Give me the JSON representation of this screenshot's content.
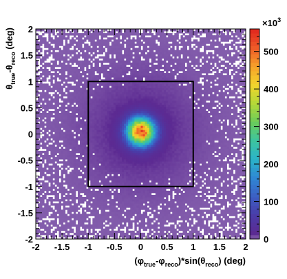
{
  "chart_data": {
    "type": "heatmap",
    "title": "",
    "xlabel_parts": [
      "(φ",
      "true",
      "-φ",
      "reco",
      ")*sin(θ",
      "reco",
      ") (deg)"
    ],
    "ylabel_parts": [
      "θ",
      "true",
      "-θ",
      "reco",
      " (deg)"
    ],
    "xlim": [
      -2,
      2
    ],
    "ylim": [
      -2,
      2
    ],
    "x_ticks": [
      "-2",
      "-1.5",
      "-1",
      "-0.5",
      "0",
      "0.5",
      "1",
      "1.5",
      "2"
    ],
    "y_ticks": [
      "-2",
      "-1.5",
      "-1",
      "-0.5",
      "0",
      "0.5",
      "1",
      "1.5",
      "2"
    ],
    "z_range": [
      0,
      560
    ],
    "z_ticks": [
      "0",
      "100",
      "200",
      "300",
      "400",
      "500"
    ],
    "z_multiplier": "×10",
    "z_multiplier_exp": "3",
    "peak_value": 520,
    "peak_x": 0.0,
    "peak_y": 0.05,
    "core_sigma_deg": 0.18,
    "halo_sigma_deg": 0.75,
    "selection_box": {
      "x": [
        -1,
        1
      ],
      "y": [
        -1,
        1
      ]
    },
    "colormap": [
      "#ffffff",
      "#5c2a92",
      "#4a3ca8",
      "#3c5ec4",
      "#2f87d4",
      "#2bb3c9",
      "#3cc4a0",
      "#6bcc5a",
      "#b4d838",
      "#f2d52c",
      "#f7a12a",
      "#ee5a28",
      "#e0261e"
    ],
    "grid": false,
    "legend": "colorbar-right"
  }
}
